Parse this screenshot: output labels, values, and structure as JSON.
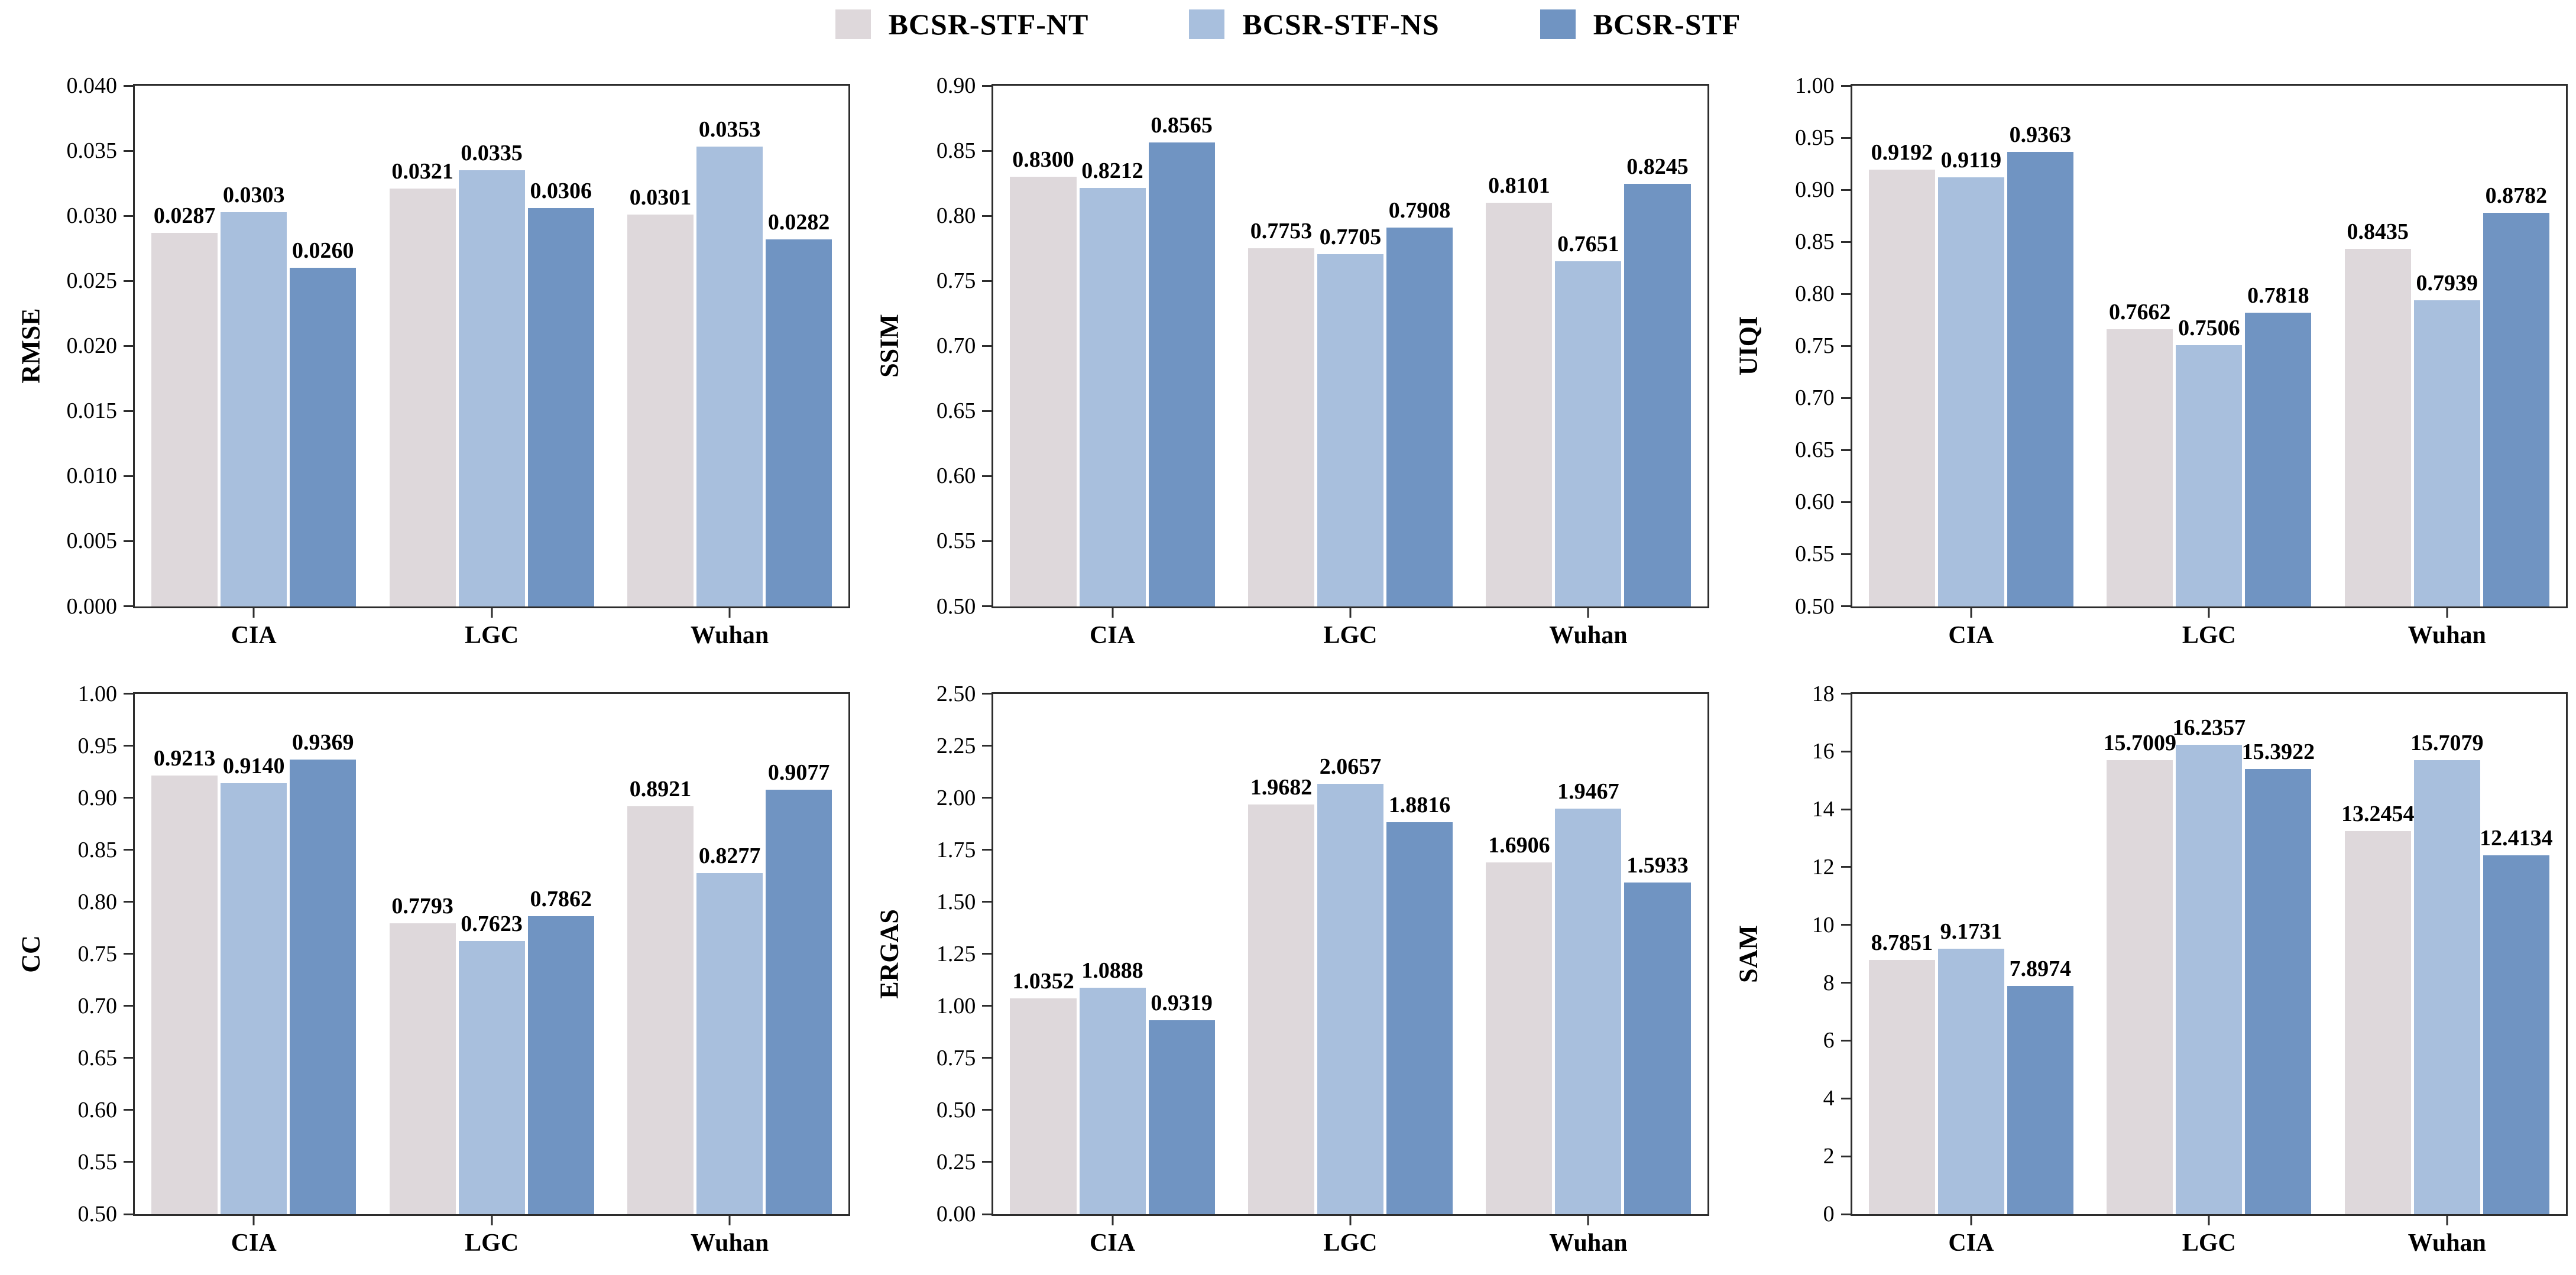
{
  "legend": {
    "items": [
      {
        "label": "BCSR-STF-NT",
        "color": "#ded8db"
      },
      {
        "label": "BCSR-STF-NS",
        "color": "#a8bfdd"
      },
      {
        "label": "BCSR-STF",
        "color": "#7094c2"
      }
    ]
  },
  "chart_data": [
    {
      "type": "bar",
      "ylabel": "RMSE",
      "categories": [
        "CIA",
        "LGC",
        "Wuhan"
      ],
      "ylim": [
        0,
        0.04
      ],
      "ytick_step": 0.005,
      "ytick_decimals": 3,
      "grid": false,
      "series": [
        {
          "name": "BCSR-STF-NT",
          "values": [
            0.0287,
            0.0321,
            0.0301
          ],
          "value_labels": [
            "0.0287",
            "0.0321",
            "0.0301"
          ]
        },
        {
          "name": "BCSR-STF-NS",
          "values": [
            0.0303,
            0.0335,
            0.0353
          ],
          "value_labels": [
            "0.0303",
            "0.0335",
            "0.0353"
          ]
        },
        {
          "name": "BCSR-STF",
          "values": [
            0.026,
            0.0306,
            0.0282
          ],
          "value_labels": [
            "0.0260",
            "0.0306",
            "0.0282"
          ]
        }
      ]
    },
    {
      "type": "bar",
      "ylabel": "SSIM",
      "categories": [
        "CIA",
        "LGC",
        "Wuhan"
      ],
      "ylim": [
        0.5,
        0.9
      ],
      "ytick_step": 0.05,
      "ytick_decimals": 2,
      "grid": false,
      "series": [
        {
          "name": "BCSR-STF-NT",
          "values": [
            0.83,
            0.7753,
            0.8101
          ],
          "value_labels": [
            "0.8300",
            "0.7753",
            "0.8101"
          ]
        },
        {
          "name": "BCSR-STF-NS",
          "values": [
            0.8212,
            0.7705,
            0.7651
          ],
          "value_labels": [
            "0.8212",
            "0.7705",
            "0.7651"
          ]
        },
        {
          "name": "BCSR-STF",
          "values": [
            0.8565,
            0.7908,
            0.8245
          ],
          "value_labels": [
            "0.8565",
            "0.7908",
            "0.8245"
          ]
        }
      ]
    },
    {
      "type": "bar",
      "ylabel": "UIQI",
      "categories": [
        "CIA",
        "LGC",
        "Wuhan"
      ],
      "ylim": [
        0.5,
        1.0
      ],
      "ytick_step": 0.05,
      "ytick_decimals": 2,
      "grid": false,
      "series": [
        {
          "name": "BCSR-STF-NT",
          "values": [
            0.9192,
            0.7662,
            0.8435
          ],
          "value_labels": [
            "0.9192",
            "0.7662",
            "0.8435"
          ]
        },
        {
          "name": "BCSR-STF-NS",
          "values": [
            0.9119,
            0.7506,
            0.7939
          ],
          "value_labels": [
            "0.9119",
            "0.7506",
            "0.7939"
          ]
        },
        {
          "name": "BCSR-STF",
          "values": [
            0.9363,
            0.7818,
            0.8782
          ],
          "value_labels": [
            "0.9363",
            "0.7818",
            "0.8782"
          ]
        }
      ]
    },
    {
      "type": "bar",
      "ylabel": "CC",
      "categories": [
        "CIA",
        "LGC",
        "Wuhan"
      ],
      "ylim": [
        0.5,
        1.0
      ],
      "ytick_step": 0.05,
      "ytick_decimals": 2,
      "grid": false,
      "series": [
        {
          "name": "BCSR-STF-NT",
          "values": [
            0.9213,
            0.7793,
            0.8921
          ],
          "value_labels": [
            "0.9213",
            "0.7793",
            "0.8921"
          ]
        },
        {
          "name": "BCSR-STF-NS",
          "values": [
            0.914,
            0.7623,
            0.8277
          ],
          "value_labels": [
            "0.9140",
            "0.7623",
            "0.8277"
          ]
        },
        {
          "name": "BCSR-STF",
          "values": [
            0.9369,
            0.7862,
            0.9077
          ],
          "value_labels": [
            "0.9369",
            "0.7862",
            "0.9077"
          ]
        }
      ]
    },
    {
      "type": "bar",
      "ylabel": "ERGAS",
      "categories": [
        "CIA",
        "LGC",
        "Wuhan"
      ],
      "ylim": [
        0.0,
        2.5
      ],
      "ytick_step": 0.25,
      "ytick_decimals": 2,
      "grid": false,
      "series": [
        {
          "name": "BCSR-STF-NT",
          "values": [
            1.0352,
            1.9682,
            1.6906
          ],
          "value_labels": [
            "1.0352",
            "1.9682",
            "1.6906"
          ]
        },
        {
          "name": "BCSR-STF-NS",
          "values": [
            1.0888,
            2.0657,
            1.9467
          ],
          "value_labels": [
            "1.0888",
            "2.0657",
            "1.9467"
          ]
        },
        {
          "name": "BCSR-STF",
          "values": [
            0.9319,
            1.8816,
            1.5933
          ],
          "value_labels": [
            "0.9319",
            "1.8816",
            "1.5933"
          ]
        }
      ]
    },
    {
      "type": "bar",
      "ylabel": "SAM",
      "categories": [
        "CIA",
        "LGC",
        "Wuhan"
      ],
      "ylim": [
        0,
        18
      ],
      "ytick_step": 2,
      "ytick_decimals": 0,
      "grid": false,
      "series": [
        {
          "name": "BCSR-STF-NT",
          "values": [
            8.7851,
            15.7009,
            13.2454
          ],
          "value_labels": [
            "8.7851",
            "15.7009",
            "13.2454"
          ]
        },
        {
          "name": "BCSR-STF-NS",
          "values": [
            9.1731,
            16.2357,
            15.7079
          ],
          "value_labels": [
            "9.1731",
            "16.2357",
            "15.7079"
          ]
        },
        {
          "name": "BCSR-STF",
          "values": [
            7.8974,
            15.3922,
            12.4134
          ],
          "value_labels": [
            "7.8974",
            "15.3922",
            "12.4134"
          ]
        }
      ]
    }
  ]
}
